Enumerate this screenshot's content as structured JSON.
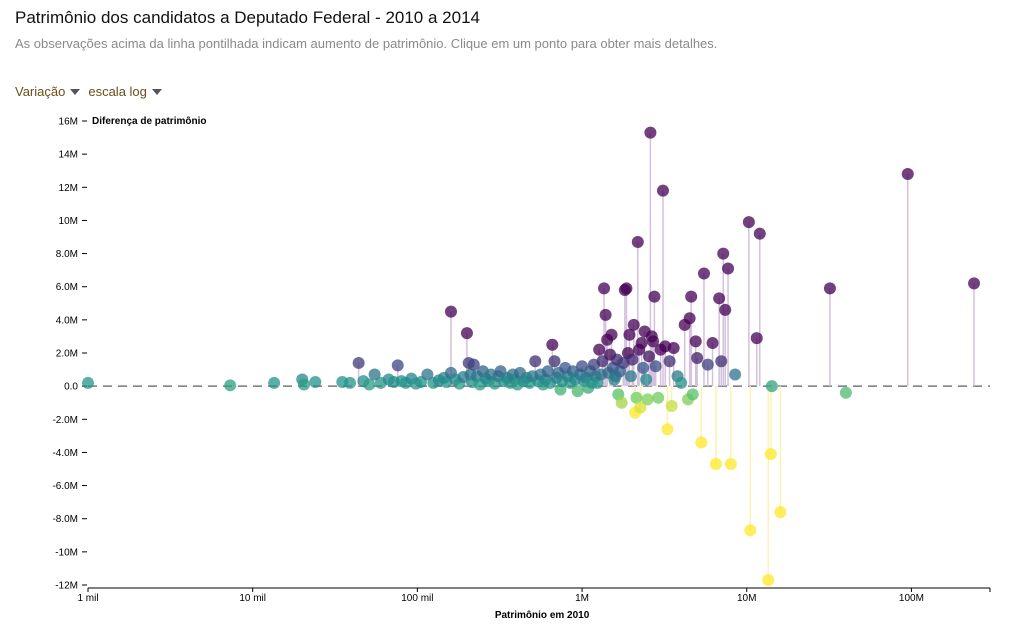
{
  "header": {
    "title": "Patrimônio dos candidatos a Deputado Federal - 2010 a 2014",
    "subtitle": "As observações acima da linha pontilhada indicam aumento de patrimônio. Clique em um ponto para obter mais detalhes."
  },
  "controls": {
    "mode_label": "Variação",
    "scale_label": "escala log"
  },
  "chart_data": {
    "type": "scatter",
    "xlabel": "Patrimônio em 2010",
    "ylabel": "Diferença de patrimônio",
    "x_scale": "log",
    "xlim": [
      1000,
      300000000
    ],
    "ylim": [
      -12000000,
      16000000
    ],
    "x_ticks": [
      {
        "value": 1000,
        "label": "1 mil"
      },
      {
        "value": 10000,
        "label": "10 mil"
      },
      {
        "value": 100000,
        "label": "100 mil"
      },
      {
        "value": 1000000,
        "label": "1M"
      },
      {
        "value": 10000000,
        "label": "10M"
      },
      {
        "value": 100000000,
        "label": "100M"
      }
    ],
    "y_ticks": [
      {
        "value": 16000000,
        "label": "16M"
      },
      {
        "value": 14000000,
        "label": "14M"
      },
      {
        "value": 12000000,
        "label": "12M"
      },
      {
        "value": 10000000,
        "label": "10M"
      },
      {
        "value": 8000000,
        "label": "8.0M"
      },
      {
        "value": 6000000,
        "label": "6.0M"
      },
      {
        "value": 4000000,
        "label": "4.0M"
      },
      {
        "value": 2000000,
        "label": "2.0M"
      },
      {
        "value": 0,
        "label": "0.0"
      },
      {
        "value": -2000000,
        "label": "-2.0M"
      },
      {
        "value": -4000000,
        "label": "-4.0M"
      },
      {
        "value": -6000000,
        "label": "-6.0M"
      },
      {
        "value": -8000000,
        "label": "-8.0M"
      },
      {
        "value": -10000000,
        "label": "-10M"
      },
      {
        "value": -12000000,
        "label": "-12M"
      }
    ],
    "zero_line": "dashed",
    "color_scale": "viridis",
    "colors": {
      "gain_high": "#440154",
      "gain_mid": "#3b528b",
      "neutral": "#21918c",
      "loss_mid": "#5ec962",
      "loss_high": "#fde725",
      "stem_gain": "#d4c0dc",
      "stem_loss": "#fdf3b0"
    },
    "points": [
      [
        1000,
        200000
      ],
      [
        7300,
        50000
      ],
      [
        13500,
        200000
      ],
      [
        20000,
        400000
      ],
      [
        24000,
        250000
      ],
      [
        20500,
        100000
      ],
      [
        35000,
        250000
      ],
      [
        39000,
        200000
      ],
      [
        44000,
        1400000
      ],
      [
        47000,
        300000
      ],
      [
        51000,
        100000
      ],
      [
        55000,
        700000
      ],
      [
        60000,
        200000
      ],
      [
        67000,
        400000
      ],
      [
        72000,
        250000
      ],
      [
        76000,
        1250000
      ],
      [
        80000,
        300000
      ],
      [
        85000,
        200000
      ],
      [
        92000,
        450000
      ],
      [
        98000,
        150000
      ],
      [
        105000,
        250000
      ],
      [
        115000,
        700000
      ],
      [
        125000,
        200000
      ],
      [
        135000,
        350000
      ],
      [
        145000,
        500000
      ],
      [
        150000,
        250000
      ],
      [
        160000,
        4500000
      ],
      [
        160000,
        800000
      ],
      [
        170000,
        400000
      ],
      [
        180000,
        150000
      ],
      [
        190000,
        550000
      ],
      [
        200000,
        3200000
      ],
      [
        205000,
        1400000
      ],
      [
        210000,
        700000
      ],
      [
        215000,
        250000
      ],
      [
        220000,
        1300000
      ],
      [
        230000,
        600000
      ],
      [
        240000,
        100000
      ],
      [
        250000,
        900000
      ],
      [
        260000,
        450000
      ],
      [
        270000,
        300000
      ],
      [
        280000,
        700000
      ],
      [
        295000,
        150000
      ],
      [
        310000,
        600000
      ],
      [
        320000,
        900000
      ],
      [
        335000,
        300000
      ],
      [
        350000,
        500000
      ],
      [
        365000,
        200000
      ],
      [
        380000,
        700000
      ],
      [
        390000,
        400000
      ],
      [
        405000,
        100000
      ],
      [
        420000,
        800000
      ],
      [
        440000,
        300000
      ],
      [
        460000,
        500000
      ],
      [
        480000,
        200000
      ],
      [
        500000,
        600000
      ],
      [
        520000,
        1500000
      ],
      [
        540000,
        300000
      ],
      [
        560000,
        700000
      ],
      [
        580000,
        100000
      ],
      [
        600000,
        400000
      ],
      [
        620000,
        900000
      ],
      [
        640000,
        200000
      ],
      [
        660000,
        2500000
      ],
      [
        680000,
        1500000
      ],
      [
        700000,
        500000
      ],
      [
        720000,
        800000
      ],
      [
        740000,
        -200000
      ],
      [
        760000,
        300000
      ],
      [
        790000,
        1100000
      ],
      [
        820000,
        600000
      ],
      [
        850000,
        200000
      ],
      [
        880000,
        900000
      ],
      [
        910000,
        400000
      ],
      [
        940000,
        -300000
      ],
      [
        970000,
        700000
      ],
      [
        1000000,
        1200000
      ],
      [
        1030000,
        300000
      ],
      [
        1060000,
        500000
      ],
      [
        1090000,
        -100000
      ],
      [
        1120000,
        900000
      ],
      [
        1150000,
        200000
      ],
      [
        1180000,
        1300000
      ],
      [
        1210000,
        600000
      ],
      [
        1240000,
        200000
      ],
      [
        1270000,
        2200000
      ],
      [
        1300000,
        700000
      ],
      [
        1330000,
        1500000
      ],
      [
        1360000,
        5900000
      ],
      [
        1390000,
        4300000
      ],
      [
        1420000,
        2800000
      ],
      [
        1450000,
        800000
      ],
      [
        1480000,
        1900000
      ],
      [
        1510000,
        3100000
      ],
      [
        1540000,
        1100000
      ],
      [
        1570000,
        400000
      ],
      [
        1600000,
        600000
      ],
      [
        1630000,
        1600000
      ],
      [
        1660000,
        -500000
      ],
      [
        1700000,
        900000
      ],
      [
        1740000,
        -1000000
      ],
      [
        1780000,
        1400000
      ],
      [
        1820000,
        5800000
      ],
      [
        1860000,
        5900000
      ],
      [
        1900000,
        2000000
      ],
      [
        1940000,
        3100000
      ],
      [
        1980000,
        600000
      ],
      [
        2020000,
        1600000
      ],
      [
        2060000,
        3700000
      ],
      [
        2100000,
        -1600000
      ],
      [
        2140000,
        -700000
      ],
      [
        2180000,
        8700000
      ],
      [
        2220000,
        2200000
      ],
      [
        2260000,
        -1300000
      ],
      [
        2300000,
        2600000
      ],
      [
        2350000,
        1100000
      ],
      [
        2400000,
        3300000
      ],
      [
        2450000,
        400000
      ],
      [
        2500000,
        -800000
      ],
      [
        2550000,
        1800000
      ],
      [
        2600000,
        15300000
      ],
      [
        2650000,
        3000000
      ],
      [
        2700000,
        2700000
      ],
      [
        2750000,
        5400000
      ],
      [
        2800000,
        1200000
      ],
      [
        2900000,
        -700000
      ],
      [
        3000000,
        2200000
      ],
      [
        3100000,
        11800000
      ],
      [
        3200000,
        2400000
      ],
      [
        3300000,
        -2600000
      ],
      [
        3400000,
        1500000
      ],
      [
        3500000,
        -1200000
      ],
      [
        3600000,
        2300000
      ],
      [
        3800000,
        600000
      ],
      [
        4000000,
        200000
      ],
      [
        4200000,
        3700000
      ],
      [
        4400000,
        -800000
      ],
      [
        4500000,
        4100000
      ],
      [
        4600000,
        5400000
      ],
      [
        4700000,
        -500000
      ],
      [
        4900000,
        2700000
      ],
      [
        5000000,
        1700000
      ],
      [
        5300000,
        -3400000
      ],
      [
        5500000,
        6800000
      ],
      [
        5800000,
        1300000
      ],
      [
        6200000,
        2600000
      ],
      [
        6500000,
        -4700000
      ],
      [
        6800000,
        5300000
      ],
      [
        7000000,
        1500000
      ],
      [
        7200000,
        8000000
      ],
      [
        7400000,
        4600000
      ],
      [
        7700000,
        7100000
      ],
      [
        8000000,
        -4700000
      ],
      [
        8500000,
        700000
      ],
      [
        10300000,
        9900000
      ],
      [
        10500000,
        -8700000
      ],
      [
        11500000,
        2900000
      ],
      [
        12000000,
        9200000
      ],
      [
        13500000,
        -11700000
      ],
      [
        14000000,
        -4100000
      ],
      [
        14200000,
        0
      ],
      [
        16000000,
        -7600000
      ],
      [
        32000000,
        5900000
      ],
      [
        40000000,
        -400000
      ],
      [
        95000000,
        12800000
      ],
      [
        240000000,
        6200000
      ]
    ]
  }
}
